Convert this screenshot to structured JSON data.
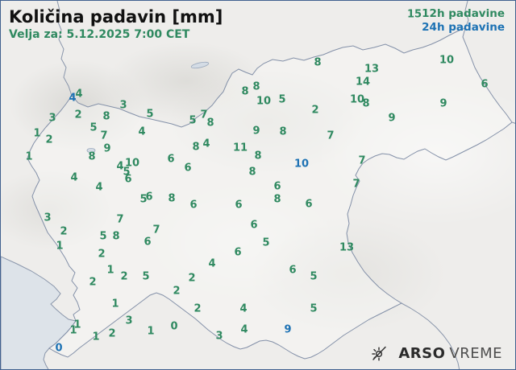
{
  "header": {
    "title": "Količina padavin [mm]",
    "valid_for": "Velja za: 5.12.2025 7:00 CET"
  },
  "legend": {
    "item_12h": "12h padavine",
    "item_24h": "24h padavine"
  },
  "logo": {
    "agency": "ARSO",
    "product": "VREME"
  },
  "colors": {
    "green_12h": "#2f8960",
    "blue_24h": "#1d72b4",
    "title_text": "#111111",
    "sea": "#dde3e9",
    "land": "#eeedeb",
    "border_lines": "#8a96ab"
  },
  "map": {
    "region": "Slovenija",
    "stations_12h": [
      [
        513,
        17,
        "15"
      ],
      [
        553,
        74,
        "10"
      ],
      [
        393,
        77,
        "8"
      ],
      [
        460,
        85,
        "13"
      ],
      [
        449,
        101,
        "14"
      ],
      [
        600,
        104,
        "6"
      ],
      [
        317,
        107,
        "8"
      ],
      [
        303,
        113,
        "8"
      ],
      [
        97,
        116,
        "4"
      ],
      [
        442,
        123,
        "10"
      ],
      [
        349,
        123,
        "5"
      ],
      [
        326,
        125,
        "10"
      ],
      [
        453,
        128,
        "8"
      ],
      [
        549,
        128,
        "9"
      ],
      [
        152,
        130,
        "3"
      ],
      [
        390,
        136,
        "2"
      ],
      [
        185,
        141,
        "5"
      ],
      [
        96,
        142,
        "2"
      ],
      [
        252,
        142,
        "7"
      ],
      [
        131,
        144,
        "8"
      ],
      [
        64,
        146,
        "3"
      ],
      [
        485,
        146,
        "9"
      ],
      [
        238,
        149,
        "5"
      ],
      [
        260,
        152,
        "8"
      ],
      [
        115,
        158,
        "5"
      ],
      [
        317,
        162,
        "9"
      ],
      [
        350,
        163,
        "8"
      ],
      [
        175,
        163,
        "4"
      ],
      [
        45,
        165,
        "1"
      ],
      [
        128,
        168,
        "7"
      ],
      [
        409,
        168,
        "7"
      ],
      [
        60,
        173,
        "2"
      ],
      [
        255,
        178,
        "4"
      ],
      [
        242,
        182,
        "8"
      ],
      [
        297,
        183,
        "11"
      ],
      [
        132,
        184,
        "9"
      ],
      [
        319,
        193,
        "8"
      ],
      [
        35,
        194,
        "1"
      ],
      [
        113,
        194,
        "8"
      ],
      [
        211,
        197,
        "6"
      ],
      [
        448,
        199,
        "7"
      ],
      [
        163,
        202,
        "10"
      ],
      [
        148,
        206,
        "4"
      ],
      [
        232,
        208,
        "6"
      ],
      [
        156,
        213,
        "5"
      ],
      [
        312,
        213,
        "8"
      ],
      [
        91,
        220,
        "4"
      ],
      [
        158,
        222,
        "6"
      ],
      [
        441,
        228,
        "7"
      ],
      [
        343,
        231,
        "6"
      ],
      [
        122,
        232,
        "4"
      ],
      [
        184,
        244,
        "6"
      ],
      [
        177,
        247,
        "5"
      ],
      [
        212,
        246,
        "8"
      ],
      [
        343,
        247,
        "8"
      ],
      [
        382,
        253,
        "6"
      ],
      [
        239,
        254,
        "6"
      ],
      [
        295,
        254,
        "6"
      ],
      [
        58,
        270,
        "3"
      ],
      [
        148,
        272,
        "7"
      ],
      [
        314,
        279,
        "6"
      ],
      [
        193,
        285,
        "7"
      ],
      [
        78,
        287,
        "2"
      ],
      [
        127,
        293,
        "5"
      ],
      [
        143,
        293,
        "8"
      ],
      [
        182,
        300,
        "6"
      ],
      [
        329,
        301,
        "5"
      ],
      [
        73,
        305,
        "1"
      ],
      [
        429,
        307,
        "13"
      ],
      [
        294,
        313,
        "6"
      ],
      [
        125,
        315,
        "2"
      ],
      [
        262,
        327,
        "4"
      ],
      [
        136,
        335,
        "1"
      ],
      [
        362,
        335,
        "6"
      ],
      [
        153,
        343,
        "2"
      ],
      [
        180,
        343,
        "5"
      ],
      [
        388,
        343,
        "5"
      ],
      [
        237,
        345,
        "2"
      ],
      [
        114,
        350,
        "2"
      ],
      [
        218,
        361,
        "2"
      ],
      [
        142,
        377,
        "1"
      ],
      [
        244,
        383,
        "2"
      ],
      [
        301,
        383,
        "4"
      ],
      [
        388,
        383,
        "5"
      ],
      [
        159,
        398,
        "3"
      ],
      [
        95,
        403,
        "1"
      ],
      [
        215,
        405,
        "0"
      ],
      [
        302,
        409,
        "4"
      ],
      [
        90,
        410,
        "1"
      ],
      [
        186,
        411,
        "1"
      ],
      [
        138,
        414,
        "2"
      ],
      [
        271,
        417,
        "3"
      ],
      [
        118,
        418,
        "1"
      ]
    ],
    "stations_24h": [
      [
        89,
        121,
        "4"
      ],
      [
        373,
        203,
        "10"
      ],
      [
        356,
        409,
        "9"
      ],
      [
        72,
        432,
        "0"
      ]
    ]
  }
}
